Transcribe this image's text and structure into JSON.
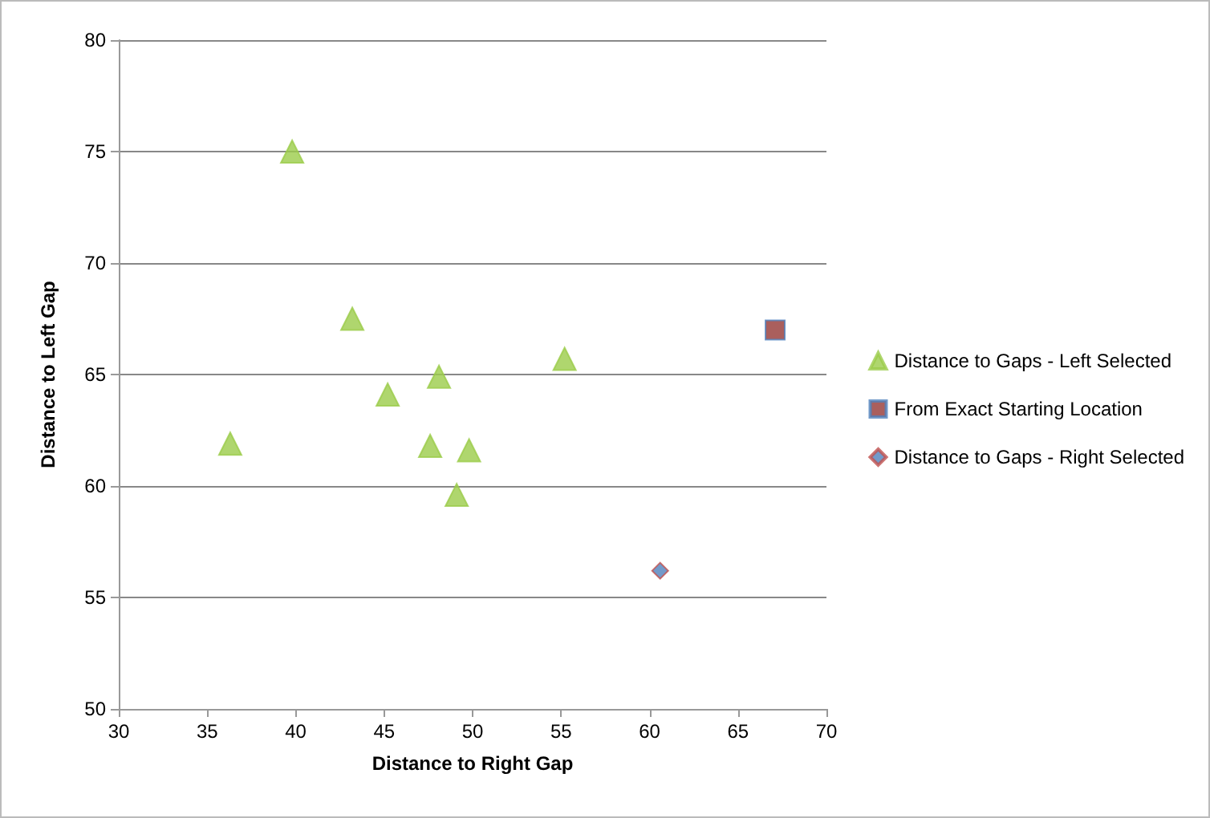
{
  "chart_data": {
    "type": "scatter",
    "xlabel": "Distance to Right Gap",
    "ylabel": "Distance to Left Gap",
    "xlim": [
      30,
      70
    ],
    "xticks": [
      30,
      35,
      40,
      45,
      50,
      55,
      60,
      65,
      70
    ],
    "ylim": [
      50,
      80
    ],
    "yticks": [
      50,
      55,
      60,
      65,
      70,
      75,
      80
    ],
    "grid": "y",
    "legend": "right",
    "series": [
      {
        "name": "Distance to Gaps - Left Selected",
        "color": "#9bcc4a",
        "marker": "triangle",
        "x": [
          36.3,
          39.8,
          43.2,
          45.2,
          48.1,
          47.6,
          49.8,
          49.1,
          55.2
        ],
        "values": [
          61.9,
          75.0,
          67.5,
          64.1,
          64.9,
          61.8,
          61.6,
          59.6,
          65.7
        ]
      },
      {
        "name": "From Exact Starting Location",
        "color": "#953735",
        "marker": "square",
        "x": [
          67.1
        ],
        "values": [
          67.0
        ]
      },
      {
        "name": "Distance to Gaps - Right Selected",
        "color": "#4f81bd",
        "marker": "diamond",
        "x": [
          60.6
        ],
        "values": [
          56.2
        ]
      }
    ]
  }
}
